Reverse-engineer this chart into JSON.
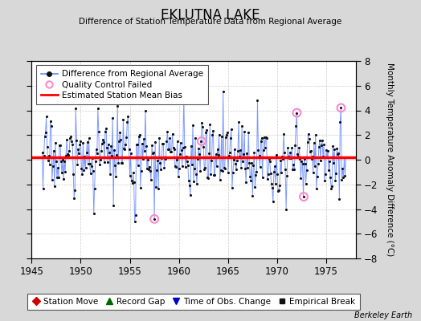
{
  "title": "EKLUTNA LAKE",
  "subtitle": "Difference of Station Temperature Data from Regional Average",
  "ylabel": "Monthly Temperature Anomaly Difference (°C)",
  "xlim": [
    1945,
    1978
  ],
  "ylim": [
    -8,
    8
  ],
  "yticks": [
    -8,
    -6,
    -4,
    -2,
    0,
    2,
    4,
    6,
    8
  ],
  "xticks": [
    1945,
    1950,
    1955,
    1960,
    1965,
    1970,
    1975
  ],
  "bias_line": 0.2,
  "bias_color": "#ff0000",
  "line_color": "#6688ff",
  "marker_color": "#111111",
  "qc_failed_color": "#ff88cc",
  "background_color": "#d8d8d8",
  "plot_bg_color": "#ffffff",
  "watermark": "Berkeley Earth",
  "legend1_items": [
    "Difference from Regional Average",
    "Quality Control Failed",
    "Estimated Station Mean Bias"
  ],
  "legend2_items": [
    "Station Move",
    "Record Gap",
    "Time of Obs. Change",
    "Empirical Break"
  ],
  "seed": 17,
  "t_start": 1946.08,
  "t_end": 1977.0,
  "n_monthly": 372
}
